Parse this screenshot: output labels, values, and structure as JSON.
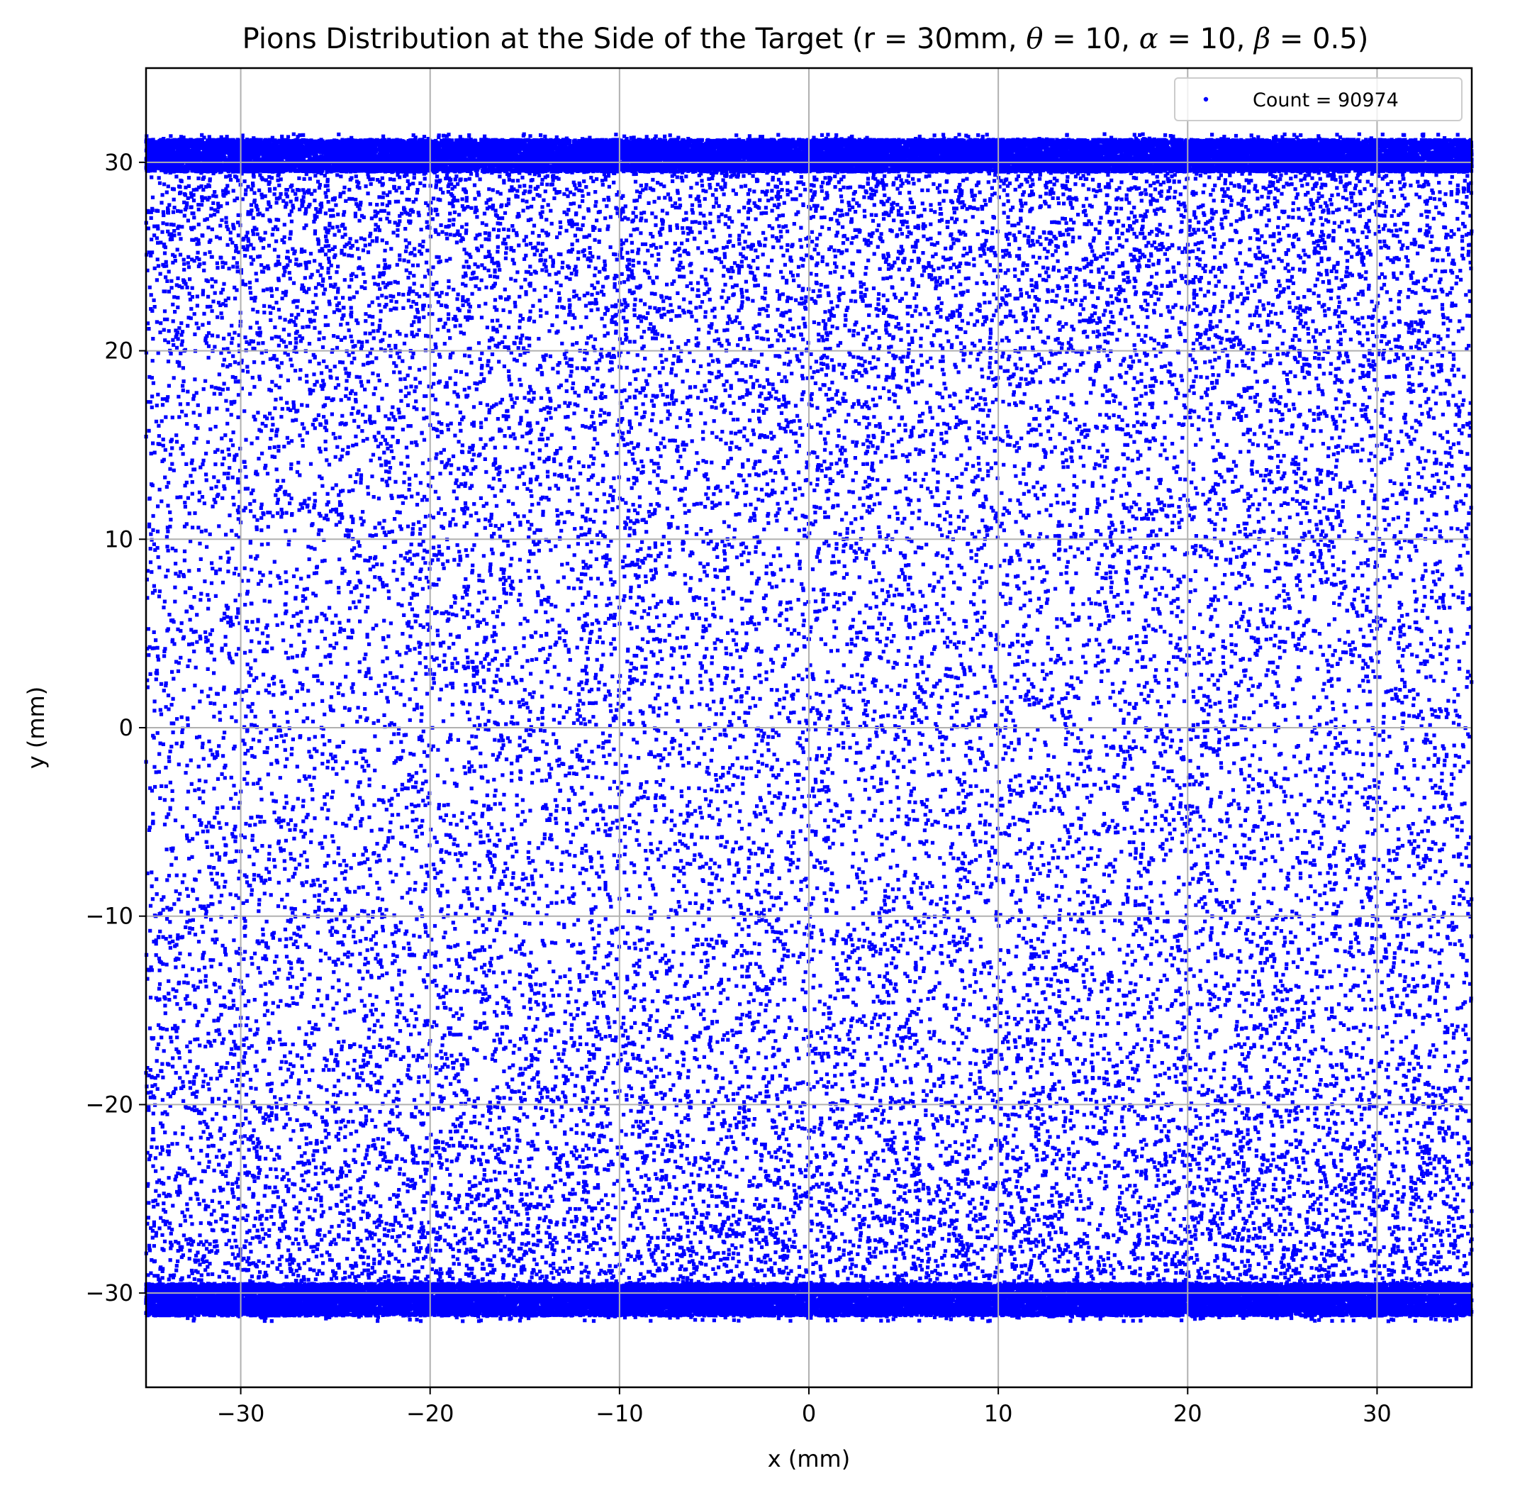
{
  "chart_data": {
    "type": "scatter",
    "title_prefix": "Pions Distribution at the Side of the Target (r = 30mm, ",
    "title_params": [
      {
        "symbol": "θ",
        "value": "10"
      },
      {
        "symbol": "α",
        "value": "10"
      },
      {
        "symbol": "β",
        "value": "0.5"
      }
    ],
    "title_suffix": ")",
    "xlabel": "x (mm)",
    "ylabel": "y (mm)",
    "xlim": [
      -35,
      35
    ],
    "ylim": [
      -35,
      35
    ],
    "xticks": [
      -30,
      -20,
      -10,
      0,
      10,
      20,
      30
    ],
    "yticks": [
      -30,
      -20,
      -10,
      0,
      10,
      20,
      30
    ],
    "xtick_labels": [
      "−30",
      "−20",
      "−10",
      "0",
      "10",
      "20",
      "30"
    ],
    "ytick_labels": [
      "−30",
      "−20",
      "−10",
      "0",
      "10",
      "20",
      "30"
    ],
    "grid": true,
    "legend": {
      "position": "top-right",
      "label": "Count = 90974"
    },
    "series": [
      {
        "name": "Count = 90974",
        "color": "#0000ff",
        "count": 90974,
        "x_range": [
          -35,
          35
        ],
        "y_range": [
          -31.5,
          31.5
        ],
        "dense_bands_y": [
          [
            29.5,
            31.2
          ],
          [
            -31.2,
            -29.5
          ]
        ]
      }
    ]
  }
}
